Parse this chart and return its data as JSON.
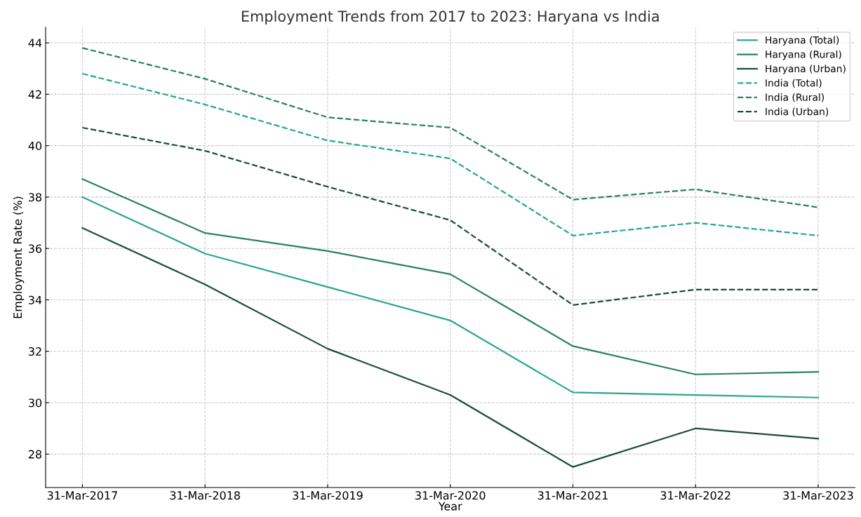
{
  "chart_data": {
    "type": "line",
    "title": "Employment Trends from 2017 to 2023: Haryana vs India",
    "xlabel": "Year",
    "ylabel": "Employment Rate (%)",
    "categories": [
      "31-Mar-2017",
      "31-Mar-2018",
      "31-Mar-2019",
      "31-Mar-2020",
      "31-Mar-2021",
      "31-Mar-2022",
      "31-Mar-2023"
    ],
    "series": [
      {
        "name": "Haryana (Total)",
        "color": "#2ca58d",
        "line_style": "solid",
        "values": [
          38.0,
          35.8,
          34.5,
          33.2,
          30.4,
          30.3,
          30.2
        ]
      },
      {
        "name": "Haryana (Rural)",
        "color": "#2a8068",
        "line_style": "solid",
        "values": [
          38.7,
          36.6,
          35.9,
          35.0,
          32.2,
          31.1,
          31.2
        ]
      },
      {
        "name": "Haryana (Urban)",
        "color": "#1a4d3a",
        "line_style": "solid",
        "values": [
          36.8,
          34.6,
          32.1,
          30.3,
          27.5,
          29.0,
          28.6
        ]
      },
      {
        "name": "India (Total)",
        "color": "#2ca58d",
        "line_style": "dashed",
        "values": [
          42.8,
          41.6,
          40.2,
          39.5,
          36.5,
          37.0,
          36.5
        ]
      },
      {
        "name": "India (Rural)",
        "color": "#2a8068",
        "line_style": "dashed",
        "values": [
          43.8,
          42.6,
          41.1,
          40.7,
          37.9,
          38.3,
          37.6
        ]
      },
      {
        "name": "India (Urban)",
        "color": "#1a4d3a",
        "line_style": "dashed",
        "values": [
          40.7,
          39.8,
          38.4,
          37.1,
          33.8,
          34.4,
          34.4
        ]
      }
    ],
    "ylim": [
      26.7,
      44.6
    ],
    "yticks": [
      28,
      30,
      32,
      34,
      36,
      38,
      40,
      42,
      44
    ],
    "grid": true,
    "legend": "top right"
  }
}
